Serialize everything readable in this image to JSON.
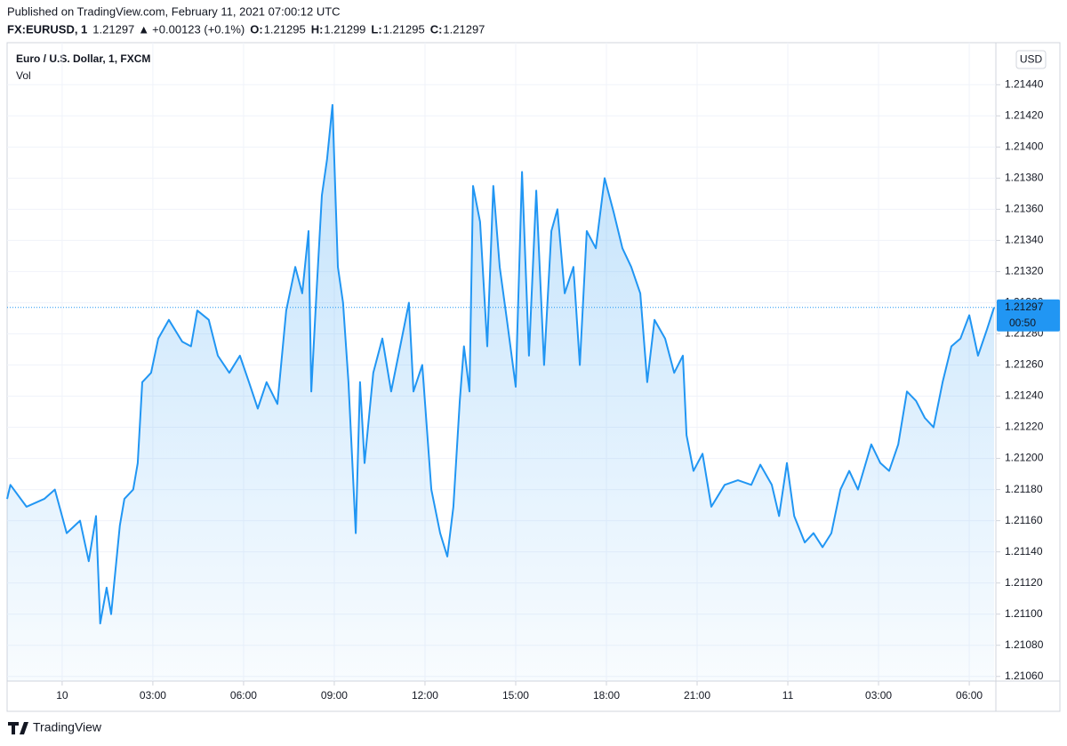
{
  "header": {
    "published": "Published on TradingView.com, February 11, 2021 07:00:12 UTC",
    "symbol": "FX:EURUSD, 1",
    "last": 1.21297,
    "arrow": "▲",
    "change": "+0.00123 (+0.1%)",
    "ohlc": [
      {
        "label": "O:",
        "value": 1.21295
      },
      {
        "label": "H:",
        "value": 1.21299
      },
      {
        "label": "L:",
        "value": 1.21295
      },
      {
        "label": "C:",
        "value": 1.21297
      }
    ]
  },
  "chart_data": {
    "type": "area",
    "title": "Euro / U.S. Dollar, 1, FXCM",
    "subtitle": "Vol",
    "currency": "USD",
    "color": "#2196f3",
    "last_price": 1.21297,
    "countdown": "00:50",
    "grid": true,
    "xlim": [
      -1.82,
      30.88
    ],
    "ylim": [
      1.21057,
      1.21467
    ],
    "xticks": [
      {
        "value": 0,
        "label": "10"
      },
      {
        "value": 3,
        "label": "03:00"
      },
      {
        "value": 6,
        "label": "06:00"
      },
      {
        "value": 9,
        "label": "09:00"
      },
      {
        "value": 12,
        "label": "12:00"
      },
      {
        "value": 15,
        "label": "15:00"
      },
      {
        "value": 18,
        "label": "18:00"
      },
      {
        "value": 21,
        "label": "21:00"
      },
      {
        "value": 24,
        "label": "11"
      },
      {
        "value": 27,
        "label": "03:00"
      },
      {
        "value": 30,
        "label": "06:00"
      }
    ],
    "yticks": [
      {
        "value": 1.2106,
        "label": "1.21060"
      },
      {
        "value": 1.2108,
        "label": "1.21080"
      },
      {
        "value": 1.211,
        "label": "1.21100"
      },
      {
        "value": 1.2112,
        "label": "1.21120"
      },
      {
        "value": 1.2114,
        "label": "1.21140"
      },
      {
        "value": 1.2116,
        "label": "1.21160"
      },
      {
        "value": 1.2118,
        "label": "1.21180"
      },
      {
        "value": 1.212,
        "label": "1.21200"
      },
      {
        "value": 1.2122,
        "label": "1.21220"
      },
      {
        "value": 1.2124,
        "label": "1.21240"
      },
      {
        "value": 1.2126,
        "label": "1.21260"
      },
      {
        "value": 1.2128,
        "label": "1.21280"
      },
      {
        "value": 1.213,
        "label": "1.21300"
      },
      {
        "value": 1.2132,
        "label": "1.21320"
      },
      {
        "value": 1.2134,
        "label": "1.21340"
      },
      {
        "value": 1.2136,
        "label": "1.21360"
      },
      {
        "value": 1.2138,
        "label": "1.21380"
      },
      {
        "value": 1.214,
        "label": "1.21400"
      },
      {
        "value": 1.2142,
        "label": "1.21420"
      },
      {
        "value": 1.2144,
        "label": "1.21440"
      }
    ],
    "x": [
      -1.82,
      -1.71,
      -1.18,
      -0.59,
      -0.24,
      0.15,
      0.59,
      0.88,
      1.12,
      1.26,
      1.47,
      1.62,
      1.91,
      2.06,
      2.35,
      2.5,
      2.65,
      2.94,
      3.18,
      3.53,
      3.97,
      4.26,
      4.47,
      4.85,
      5.15,
      5.53,
      5.88,
      6.18,
      6.47,
      6.76,
      7.12,
      7.41,
      7.71,
      7.94,
      8.15,
      8.24,
      8.41,
      8.59,
      8.76,
      8.94,
      9.12,
      9.29,
      9.47,
      9.71,
      9.85,
      10,
      10.29,
      10.59,
      10.88,
      11.18,
      11.47,
      11.62,
      11.91,
      12.21,
      12.5,
      12.74,
      12.94,
      13.15,
      13.29,
      13.47,
      13.59,
      13.82,
      14.06,
      14.26,
      14.47,
      14.71,
      15,
      15.21,
      15.44,
      15.68,
      15.94,
      16.18,
      16.38,
      16.62,
      16.91,
      17.12,
      17.35,
      17.65,
      17.94,
      18.24,
      18.53,
      18.82,
      19.12,
      19.35,
      19.59,
      19.94,
      20.24,
      20.53,
      20.65,
      20.88,
      21.18,
      21.47,
      21.91,
      22.35,
      22.79,
      23.09,
      23.47,
      23.71,
      23.97,
      24.21,
      24.56,
      24.85,
      25.15,
      25.44,
      25.74,
      26.03,
      26.32,
      26.76,
      27.06,
      27.35,
      27.65,
      27.94,
      28.24,
      28.53,
      28.82,
      29.12,
      29.41,
      29.71,
      30,
      30.29,
      30.59,
      30.82
    ],
    "values": [
      1.21174,
      1.21183,
      1.21169,
      1.21174,
      1.2118,
      1.21152,
      1.2116,
      1.21134,
      1.21163,
      1.21094,
      1.21117,
      1.211,
      1.21157,
      1.21174,
      1.2118,
      1.21197,
      1.21249,
      1.21255,
      1.21277,
      1.21289,
      1.21275,
      1.21272,
      1.21295,
      1.21289,
      1.21266,
      1.21255,
      1.21266,
      1.21249,
      1.21232,
      1.21249,
      1.21235,
      1.21295,
      1.21323,
      1.21306,
      1.21346,
      1.21243,
      1.21306,
      1.21369,
      1.21392,
      1.21427,
      1.21323,
      1.213,
      1.21249,
      1.21152,
      1.21249,
      1.21197,
      1.21255,
      1.21277,
      1.21243,
      1.21272,
      1.213,
      1.21243,
      1.2126,
      1.2118,
      1.21152,
      1.21137,
      1.21169,
      1.21237,
      1.21272,
      1.21243,
      1.21375,
      1.21352,
      1.21272,
      1.21375,
      1.21323,
      1.21289,
      1.21246,
      1.21384,
      1.21266,
      1.21372,
      1.2126,
      1.21346,
      1.2136,
      1.21306,
      1.21323,
      1.2126,
      1.21346,
      1.21335,
      1.2138,
      1.21358,
      1.21335,
      1.21323,
      1.21306,
      1.21249,
      1.21289,
      1.21277,
      1.21255,
      1.21266,
      1.21215,
      1.21192,
      1.21203,
      1.21169,
      1.21183,
      1.21186,
      1.21183,
      1.21196,
      1.21183,
      1.21163,
      1.21197,
      1.21163,
      1.21146,
      1.21152,
      1.21143,
      1.21152,
      1.2118,
      1.21192,
      1.2118,
      1.21209,
      1.21197,
      1.21192,
      1.21209,
      1.21243,
      1.21237,
      1.21226,
      1.2122,
      1.21249,
      1.21272,
      1.21277,
      1.21292,
      1.21266,
      1.21283,
      1.21297
    ]
  },
  "footer": {
    "brand": "TradingView"
  }
}
